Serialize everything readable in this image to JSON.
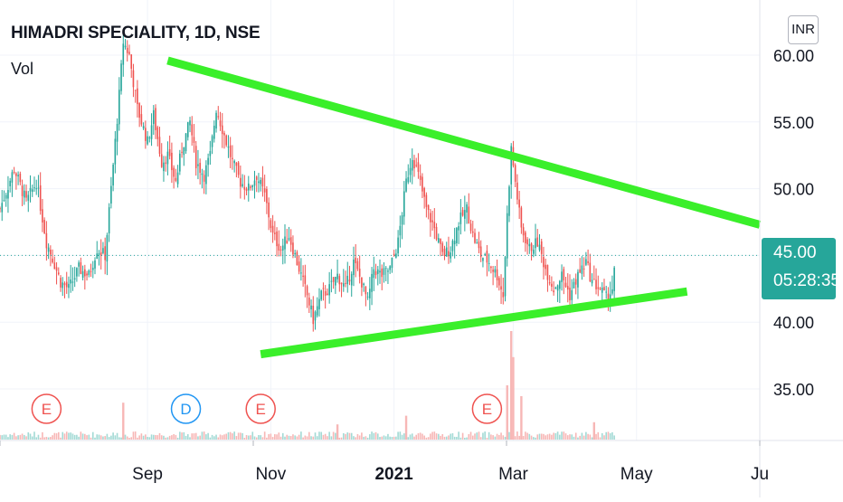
{
  "header": {
    "title": "HIMADRI SPECIALITY, 1D, NSE",
    "indicator_label": "Vol",
    "currency": "INR"
  },
  "price_label": {
    "value": "45.00",
    "countdown": "05:28:35",
    "color": "#26a69a"
  },
  "chart_data": {
    "type": "candlestick",
    "title": "HIMADRI SPECIALITY, 1D, NSE",
    "x_ticks": [
      "Sep",
      "Nov",
      "2021",
      "Mar",
      "May",
      "Ju"
    ],
    "x_tick_dates": [
      "2020-09-01",
      "2020-11-01",
      "2021-01-01",
      "2021-03-01",
      "2021-05-01",
      "2021-07-01"
    ],
    "y_ticks": [
      "35.00",
      "40.00",
      "45.00",
      "50.00",
      "55.00",
      "60.00"
    ],
    "y_range": [
      30.8,
      63.5
    ],
    "x_range": [
      "2020-06-20",
      "2021-07-01"
    ],
    "last_price": 45.0,
    "colors": {
      "up": "#26a69a",
      "down": "#ef5350",
      "trendline": "#3aef2a",
      "grid": "#f0f3fa"
    },
    "price_path": [
      [
        "2020-06-20",
        48.5
      ],
      [
        "2020-06-27",
        51.5
      ],
      [
        "2020-07-03",
        49.0
      ],
      [
        "2020-07-08",
        50.5
      ],
      [
        "2020-07-13",
        46.0
      ],
      [
        "2020-07-16",
        44.8
      ],
      [
        "2020-07-20",
        43.0
      ],
      [
        "2020-07-24",
        42.5
      ],
      [
        "2020-07-29",
        44.0
      ],
      [
        "2020-08-03",
        43.5
      ],
      [
        "2020-08-07",
        45.5
      ],
      [
        "2020-08-11",
        45.0
      ],
      [
        "2020-08-14",
        50.0
      ],
      [
        "2020-08-18",
        57.0
      ],
      [
        "2020-08-20",
        61.0
      ],
      [
        "2020-08-23",
        60.0
      ],
      [
        "2020-08-27",
        56.0
      ],
      [
        "2020-09-01",
        53.5
      ],
      [
        "2020-09-04",
        55.5
      ],
      [
        "2020-09-08",
        52.0
      ],
      [
        "2020-09-11",
        52.5
      ],
      [
        "2020-09-15",
        50.5
      ],
      [
        "2020-09-18",
        53.0
      ],
      [
        "2020-09-22",
        55.0
      ],
      [
        "2020-09-25",
        52.0
      ],
      [
        "2020-09-29",
        51.0
      ],
      [
        "2020-10-02",
        52.5
      ],
      [
        "2020-10-05",
        56.0
      ],
      [
        "2020-10-09",
        54.0
      ],
      [
        "2020-10-13",
        52.0
      ],
      [
        "2020-10-17",
        50.5
      ],
      [
        "2020-10-21",
        50.0
      ],
      [
        "2020-10-25",
        51.0
      ],
      [
        "2020-10-29",
        49.5
      ],
      [
        "2020-11-02",
        46.5
      ],
      [
        "2020-11-06",
        45.5
      ],
      [
        "2020-11-10",
        46.5
      ],
      [
        "2020-11-15",
        44.0
      ],
      [
        "2020-11-19",
        42.0
      ],
      [
        "2020-11-22",
        40.2
      ],
      [
        "2020-11-26",
        42.0
      ],
      [
        "2020-11-30",
        42.5
      ],
      [
        "2020-12-04",
        43.5
      ],
      [
        "2020-12-08",
        42.5
      ],
      [
        "2020-12-12",
        44.5
      ],
      [
        "2020-12-16",
        43.0
      ],
      [
        "2020-12-19",
        41.5
      ],
      [
        "2020-12-22",
        44.0
      ],
      [
        "2020-12-26",
        43.5
      ],
      [
        "2020-12-30",
        44.0
      ],
      [
        "2021-01-03",
        46.0
      ],
      [
        "2021-01-07",
        50.5
      ],
      [
        "2021-01-10",
        52.5
      ],
      [
        "2021-01-13",
        51.0
      ],
      [
        "2021-01-17",
        48.5
      ],
      [
        "2021-01-21",
        47.0
      ],
      [
        "2021-01-25",
        45.0
      ],
      [
        "2021-01-29",
        45.5
      ],
      [
        "2021-02-02",
        47.5
      ],
      [
        "2021-02-06",
        48.5
      ],
      [
        "2021-02-09",
        46.5
      ],
      [
        "2021-02-13",
        45.0
      ],
      [
        "2021-02-17",
        44.5
      ],
      [
        "2021-02-21",
        43.5
      ],
      [
        "2021-02-24",
        42.0
      ],
      [
        "2021-02-26",
        48.0
      ],
      [
        "2021-02-28",
        53.0
      ],
      [
        "2021-03-02",
        50.5
      ],
      [
        "2021-03-05",
        47.0
      ],
      [
        "2021-03-09",
        45.5
      ],
      [
        "2021-03-13",
        46.0
      ],
      [
        "2021-03-17",
        44.0
      ],
      [
        "2021-03-21",
        42.5
      ],
      [
        "2021-03-25",
        43.5
      ],
      [
        "2021-03-29",
        42.0
      ],
      [
        "2021-04-02",
        43.5
      ],
      [
        "2021-04-06",
        44.5
      ],
      [
        "2021-04-09",
        43.0
      ],
      [
        "2021-04-13",
        42.5
      ],
      [
        "2021-04-16",
        41.8
      ],
      [
        "2021-04-19",
        42.5
      ],
      [
        "2021-04-21",
        45.0
      ]
    ],
    "trendlines": [
      {
        "name": "resistance",
        "from": [
          "2020-09-11",
          59.6
        ],
        "to": [
          "2021-07-01",
          47.3
        ]
      },
      {
        "name": "support",
        "from": [
          "2020-10-27",
          37.6
        ],
        "to": [
          "2021-05-26",
          42.3
        ]
      }
    ],
    "events": [
      {
        "label": "E",
        "date": "2020-07-13",
        "color": "#ef5350"
      },
      {
        "label": "D",
        "date": "2020-09-20",
        "color": "#2196f3"
      },
      {
        "label": "E",
        "date": "2020-10-27",
        "color": "#ef5350"
      },
      {
        "label": "E",
        "date": "2021-02-16",
        "color": "#ef5350"
      }
    ],
    "volume": {
      "baseline": "small",
      "spikes": [
        {
          "date": "2020-08-20",
          "level": 0.34
        },
        {
          "date": "2021-02-28",
          "level": 1.0
        },
        {
          "date": "2021-03-01",
          "level": 0.76
        },
        {
          "date": "2021-02-26",
          "level": 0.5
        },
        {
          "date": "2021-03-05",
          "level": 0.4
        },
        {
          "date": "2021-01-07",
          "level": 0.22
        },
        {
          "date": "2020-12-04",
          "level": 0.14
        },
        {
          "date": "2021-04-10",
          "level": 0.16
        }
      ]
    }
  }
}
